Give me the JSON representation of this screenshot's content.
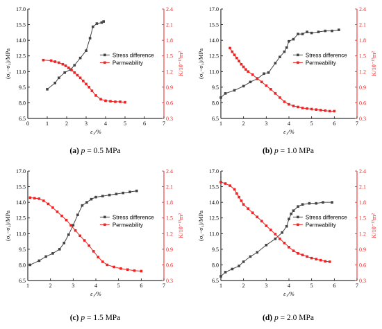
{
  "colors": {
    "stress": "#444444",
    "permeability": "#ee2222",
    "axis": "#000000"
  },
  "panels": [
    {
      "caption": {
        "label": "(a)",
        "param": "p",
        "value": "= 0.5 MPa"
      },
      "legend": {
        "stress": "Stress difference",
        "permeability": "Permeability"
      },
      "xlabel": "ε₁/%",
      "ylabel_left": "(σ₁−σ₃)/MPa",
      "ylabel_right": "K/10⁻¹⁵m²",
      "chart_data": {
        "type": "line",
        "xlim": [
          0,
          7
        ],
        "xticks": [
          "0",
          "1",
          "2",
          "3",
          "4",
          "5",
          "6",
          "7"
        ],
        "ylim_left": [
          6.5,
          17.0
        ],
        "yticks_left": [
          "6.5",
          "8.0",
          "9.5",
          "11.0",
          "12.5",
          "14.0",
          "15.5",
          "17.0"
        ],
        "ylim_right": [
          0.3,
          2.4
        ],
        "yticks_right": [
          "0.3",
          "0.6",
          "0.9",
          "1.2",
          "1.5",
          "1.8",
          "2.1",
          "2.4"
        ],
        "series": [
          {
            "name": "Stress difference",
            "axis": "left",
            "x": [
              1.0,
              1.4,
              1.6,
              1.9,
              2.2,
              2.4,
              2.7,
              3.0,
              3.2,
              3.35,
              3.55,
              3.8,
              3.9
            ],
            "y": [
              9.3,
              9.9,
              10.4,
              10.9,
              11.2,
              11.6,
              12.3,
              13.0,
              14.2,
              15.3,
              15.6,
              15.7,
              15.8
            ]
          },
          {
            "name": "Permeability",
            "axis": "right",
            "x": [
              0.8,
              1.2,
              1.4,
              1.6,
              1.8,
              1.95,
              2.1,
              2.25,
              2.4,
              2.55,
              2.7,
              2.85,
              3.0,
              3.15,
              3.3,
              3.5,
              3.75,
              4.0,
              4.25,
              4.5,
              4.75,
              5.0
            ],
            "y": [
              1.42,
              1.41,
              1.39,
              1.37,
              1.34,
              1.31,
              1.27,
              1.23,
              1.18,
              1.13,
              1.08,
              1.02,
              0.96,
              0.9,
              0.83,
              0.74,
              0.67,
              0.64,
              0.63,
              0.62,
              0.62,
              0.61
            ]
          }
        ]
      }
    },
    {
      "caption": {
        "label": "(b)",
        "param": "p",
        "value": "= 1.0 MPa"
      },
      "legend": {
        "stress": "Stress difference",
        "permeability": "Permeability"
      },
      "xlabel": "ε₁/%",
      "ylabel_left": "(σ₁−σ₃)/MPa",
      "ylabel_right": "K/10⁻¹⁵m²",
      "chart_data": {
        "type": "line",
        "xlim": [
          1,
          7
        ],
        "xticks": [
          "1",
          "2",
          "3",
          "4",
          "5",
          "6",
          "7"
        ],
        "ylim_left": [
          6.5,
          17.0
        ],
        "yticks_left": [
          "6.5",
          "8.0",
          "9.5",
          "11.0",
          "12.5",
          "14.0",
          "15.5",
          "17.0"
        ],
        "ylim_right": [
          0.3,
          2.4
        ],
        "yticks_right": [
          "0.3",
          "0.6",
          "0.9",
          "1.2",
          "1.5",
          "1.8",
          "2.1",
          "2.4"
        ],
        "series": [
          {
            "name": "Stress difference",
            "axis": "left",
            "x": [
              1.0,
              1.2,
              1.6,
              2.0,
              2.3,
              2.6,
              2.9,
              3.1,
              3.4,
              3.6,
              3.8,
              3.9,
              4.0,
              4.2,
              4.4,
              4.6,
              4.8,
              5.0,
              5.3,
              5.6,
              5.9,
              6.2
            ],
            "y": [
              8.5,
              8.9,
              9.2,
              9.6,
              10.0,
              10.3,
              10.8,
              10.9,
              11.8,
              12.4,
              12.9,
              13.3,
              13.9,
              14.1,
              14.6,
              14.6,
              14.8,
              14.7,
              14.8,
              14.9,
              14.9,
              15.0
            ]
          },
          {
            "name": "Permeability",
            "axis": "right",
            "x": [
              1.4,
              1.5,
              1.6,
              1.7,
              1.8,
              1.9,
              2.0,
              2.1,
              2.2,
              2.4,
              2.6,
              2.8,
              3.0,
              3.2,
              3.4,
              3.6,
              3.8,
              4.0,
              4.2,
              4.4,
              4.6,
              4.8,
              5.0,
              5.2,
              5.4,
              5.6,
              5.8,
              6.0
            ],
            "y": [
              1.65,
              1.58,
              1.52,
              1.46,
              1.4,
              1.34,
              1.29,
              1.24,
              1.2,
              1.14,
              1.07,
              1.0,
              0.93,
              0.86,
              0.78,
              0.7,
              0.62,
              0.57,
              0.54,
              0.52,
              0.5,
              0.49,
              0.48,
              0.47,
              0.46,
              0.45,
              0.44,
              0.44
            ]
          }
        ]
      }
    },
    {
      "caption": {
        "label": "(c)",
        "param": "p",
        "value": "= 1.5 MPa"
      },
      "legend": {
        "stress": "Stress difference",
        "permeability": "Permeability"
      },
      "xlabel": "ε₁/%",
      "ylabel_left": "(σ₁−σ₃)/MPa",
      "ylabel_right": "K/10⁻¹⁵m²",
      "chart_data": {
        "type": "line",
        "xlim": [
          1,
          7
        ],
        "xticks": [
          "1",
          "2",
          "3",
          "4",
          "5",
          "6",
          "7"
        ],
        "ylim_left": [
          6.5,
          17.0
        ],
        "yticks_left": [
          "6.5",
          "8.0",
          "9.5",
          "11.0",
          "12.5",
          "14.0",
          "15.5",
          "17.0"
        ],
        "ylim_right": [
          0.3,
          2.4
        ],
        "yticks_right": [
          "0.3",
          "0.6",
          "0.9",
          "1.2",
          "1.5",
          "1.8",
          "2.1",
          "2.4"
        ],
        "series": [
          {
            "name": "Stress difference",
            "axis": "left",
            "x": [
              1.1,
              1.5,
              1.8,
              2.1,
              2.4,
              2.6,
              2.8,
              3.0,
              3.2,
              3.4,
              3.6,
              3.8,
              4.0,
              4.3,
              4.6,
              4.9,
              5.2,
              5.5,
              5.8
            ],
            "y": [
              8.0,
              8.4,
              8.8,
              9.1,
              9.5,
              10.1,
              10.9,
              11.8,
              12.8,
              13.7,
              14.0,
              14.3,
              14.5,
              14.6,
              14.7,
              14.8,
              14.9,
              15.0,
              15.1
            ]
          },
          {
            "name": "Permeability",
            "axis": "right",
            "x": [
              1.1,
              1.3,
              1.5,
              1.7,
              1.9,
              2.1,
              2.3,
              2.5,
              2.7,
              2.9,
              3.1,
              3.3,
              3.5,
              3.7,
              3.9,
              4.1,
              4.3,
              4.5,
              4.8,
              5.1,
              5.4,
              5.7,
              6.0
            ],
            "y": [
              1.89,
              1.88,
              1.87,
              1.83,
              1.77,
              1.7,
              1.62,
              1.54,
              1.46,
              1.36,
              1.26,
              1.16,
              1.07,
              0.97,
              0.86,
              0.75,
              0.66,
              0.6,
              0.56,
              0.53,
              0.51,
              0.49,
              0.48
            ]
          }
        ]
      }
    },
    {
      "caption": {
        "label": "(d)",
        "param": "p",
        "value": "= 2.0 MPa"
      },
      "legend": {
        "stress": "Stress difference",
        "permeability": "Permeability"
      },
      "xlabel": "ε₁/%",
      "ylabel_left": "(σ₁−σ₃)/MPa",
      "ylabel_right": "K/10⁻¹⁵m²",
      "chart_data": {
        "type": "line",
        "xlim": [
          1,
          7
        ],
        "xticks": [
          "1",
          "2",
          "3",
          "4",
          "5",
          "6",
          "7"
        ],
        "ylim_left": [
          6.5,
          17.0
        ],
        "yticks_left": [
          "6.5",
          "8.0",
          "9.5",
          "11.0",
          "12.5",
          "14.0",
          "15.5",
          "17.0"
        ],
        "ylim_right": [
          0.3,
          2.4
        ],
        "yticks_right": [
          "0.3",
          "0.6",
          "0.9",
          "1.2",
          "1.5",
          "1.8",
          "2.1",
          "2.4"
        ],
        "series": [
          {
            "name": "Stress difference",
            "axis": "left",
            "x": [
              1.0,
              1.2,
              1.5,
              1.8,
              2.0,
              2.3,
              2.6,
              3.0,
              3.4,
              3.7,
              3.9,
              4.0,
              4.1,
              4.2,
              4.4,
              4.6,
              4.9,
              5.2,
              5.5,
              5.9
            ],
            "y": [
              6.9,
              7.3,
              7.6,
              7.9,
              8.3,
              8.8,
              9.2,
              9.9,
              10.5,
              11.1,
              11.7,
              12.4,
              12.9,
              13.2,
              13.6,
              13.8,
              13.9,
              13.9,
              14.0,
              14.0
            ]
          },
          {
            "name": "Permeability",
            "axis": "right",
            "x": [
              1.0,
              1.2,
              1.4,
              1.6,
              1.7,
              1.8,
              1.9,
              2.0,
              2.2,
              2.4,
              2.6,
              2.8,
              3.0,
              3.2,
              3.4,
              3.6,
              3.8,
              4.0,
              4.2,
              4.4,
              4.6,
              4.8,
              5.0,
              5.2,
              5.4,
              5.6,
              5.8
            ],
            "y": [
              2.19,
              2.16,
              2.12,
              2.05,
              1.97,
              1.9,
              1.83,
              1.76,
              1.68,
              1.6,
              1.52,
              1.44,
              1.35,
              1.27,
              1.19,
              1.1,
              1.02,
              0.94,
              0.87,
              0.82,
              0.79,
              0.76,
              0.73,
              0.71,
              0.69,
              0.67,
              0.66
            ]
          }
        ]
      }
    }
  ]
}
